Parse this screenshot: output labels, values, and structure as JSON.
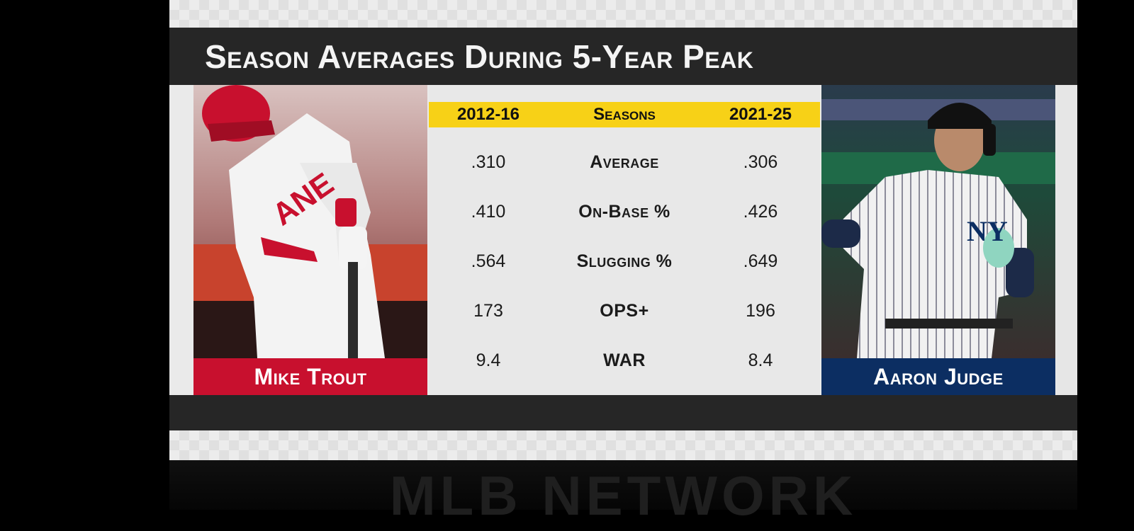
{
  "title": "Season Averages During 5-Year Peak",
  "header": {
    "left": "2012-16",
    "middle": "Seasons",
    "right": "2021-25"
  },
  "rows": [
    {
      "left": ".310",
      "label": "Average",
      "right": ".306"
    },
    {
      "left": ".410",
      "label": "On-Base %",
      "right": ".426"
    },
    {
      "left": ".564",
      "label": "Slugging %",
      "right": ".649"
    },
    {
      "left": "173",
      "label": "OPS+",
      "right": "196"
    },
    {
      "left": "9.4",
      "label": "WAR",
      "right": "8.4"
    }
  ],
  "players": {
    "left": {
      "name": "Mike Trout",
      "color": "#c8102e"
    },
    "right": {
      "name": "Aaron Judge",
      "color": "#0c2e62"
    }
  },
  "watermark": "MLB NETWORK"
}
